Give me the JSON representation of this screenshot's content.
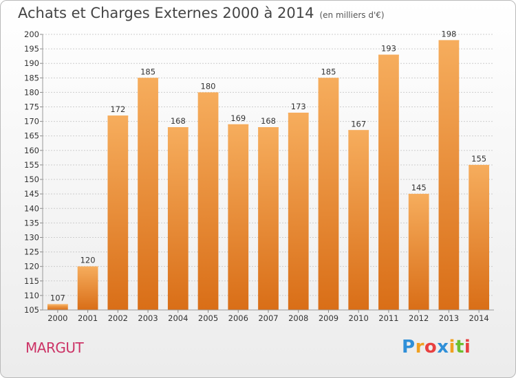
{
  "title": "Achats et Charges Externes 2000 à 2014",
  "unit": "(en milliers d'€)",
  "place_label": "MARGUT",
  "logo": {
    "letters": [
      "P",
      "r",
      "o",
      "x",
      "i",
      "t",
      "i"
    ],
    "colors": [
      "#2f8fd8",
      "#f0a020",
      "#e84040",
      "#2f8fd8",
      "#f0a020",
      "#6cbf2e",
      "#e84040"
    ]
  },
  "colors": {
    "bar": "#ef8a2a",
    "bar_light": "#f6ad5d",
    "bar_dark": "#d96e17",
    "grid": "#cccccc",
    "axis_text": "#333333"
  },
  "chart_data": {
    "type": "bar",
    "title": "Achats et Charges Externes 2000 à 2014",
    "xlabel": "",
    "ylabel": "",
    "categories": [
      "2000",
      "2001",
      "2002",
      "2003",
      "2004",
      "2005",
      "2006",
      "2007",
      "2008",
      "2009",
      "2010",
      "2011",
      "2012",
      "2013",
      "2014"
    ],
    "values": [
      107,
      120,
      172,
      185,
      168,
      180,
      169,
      168,
      173,
      185,
      167,
      193,
      145,
      198,
      155
    ],
    "ylim": [
      105,
      200
    ],
    "ytick_step": 5,
    "grid": true
  }
}
